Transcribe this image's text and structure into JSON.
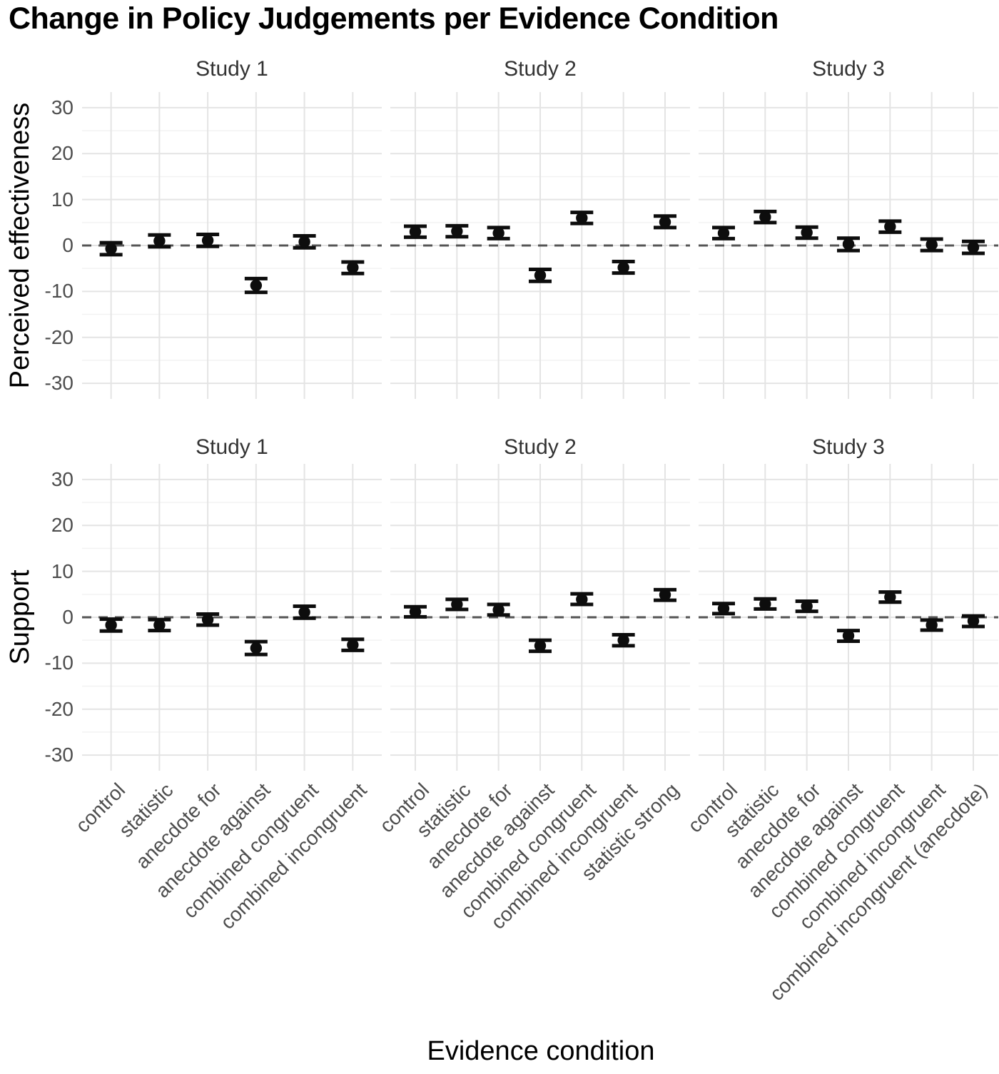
{
  "title": "Change in Policy Judgements per Evidence Condition",
  "x_axis_title": "Evidence condition",
  "y_tick_labels": [
    "30",
    "20",
    "10",
    "0",
    "-10",
    "-20",
    "-30"
  ],
  "colors": {
    "point": "#0d0d0d",
    "error_bar": "#0d0d0d",
    "zero_line": "#555555",
    "grid_major": "#e4e4e4",
    "grid_minor": "#f2f2f2",
    "axis_text": "#4d4d4d",
    "strip_text": "#333333",
    "title_text": "#000000",
    "background": "#ffffff"
  },
  "chart_data": {
    "type": "scatter",
    "subtype": "pointrange-with-error-bars",
    "grid": true,
    "zero_reference_line": true,
    "ylim": [
      -33.4,
      33.4
    ],
    "y_major_ticks": [
      30,
      20,
      10,
      0,
      -10,
      -20,
      -30
    ],
    "y_minor_ticks": [
      25,
      15,
      5,
      -5,
      -15,
      -25
    ],
    "rows": [
      {
        "ylabel": "Perceived effectiveness",
        "facets": [
          {
            "strip": "Study 1",
            "categories": [
              "control",
              "statistic",
              "anecdote for",
              "anecdote against",
              "combined congruent",
              "combined incongruent"
            ],
            "points": [
              {
                "est": -0.7,
                "lo": -2.0,
                "hi": 0.6
              },
              {
                "est": 1.0,
                "lo": -0.3,
                "hi": 2.3
              },
              {
                "est": 1.1,
                "lo": -0.2,
                "hi": 2.4
              },
              {
                "est": -8.7,
                "lo": -10.2,
                "hi": -7.2
              },
              {
                "est": 0.8,
                "lo": -0.5,
                "hi": 2.1
              },
              {
                "est": -4.8,
                "lo": -6.1,
                "hi": -3.6
              }
            ]
          },
          {
            "strip": "Study 2",
            "categories": [
              "control",
              "statistic",
              "anecdote for",
              "anecdote against",
              "combined congruent",
              "combined incongruent",
              "statistic strong"
            ],
            "points": [
              {
                "est": 3.0,
                "lo": 1.8,
                "hi": 4.2
              },
              {
                "est": 3.1,
                "lo": 1.9,
                "hi": 4.3
              },
              {
                "est": 2.7,
                "lo": 1.5,
                "hi": 3.9
              },
              {
                "est": -6.5,
                "lo": -7.8,
                "hi": -5.2
              },
              {
                "est": 6.0,
                "lo": 4.8,
                "hi": 7.2
              },
              {
                "est": -4.8,
                "lo": -6.0,
                "hi": -3.5
              },
              {
                "est": 5.1,
                "lo": 3.9,
                "hi": 6.4
              }
            ]
          },
          {
            "strip": "Study 3",
            "categories": [
              "control",
              "statistic",
              "anecdote for",
              "anecdote against",
              "combined congruent",
              "combined incongruent",
              "combined incongruent (anecdote)"
            ],
            "points": [
              {
                "est": 2.7,
                "lo": 1.5,
                "hi": 3.9
              },
              {
                "est": 6.2,
                "lo": 5.0,
                "hi": 7.4
              },
              {
                "est": 2.8,
                "lo": 1.6,
                "hi": 4.0
              },
              {
                "est": 0.3,
                "lo": -1.1,
                "hi": 1.6
              },
              {
                "est": 4.1,
                "lo": 2.9,
                "hi": 5.3
              },
              {
                "est": 0.2,
                "lo": -1.1,
                "hi": 1.4
              },
              {
                "est": -0.4,
                "lo": -1.7,
                "hi": 0.9
              }
            ]
          }
        ]
      },
      {
        "ylabel": "Support",
        "facets": [
          {
            "strip": "Study 1",
            "categories": [
              "control",
              "statistic",
              "anecdote for",
              "anecdote against",
              "combined congruent",
              "combined incongruent"
            ],
            "points": [
              {
                "est": -1.7,
                "lo": -3.0,
                "hi": -0.4
              },
              {
                "est": -1.7,
                "lo": -2.9,
                "hi": -0.5
              },
              {
                "est": -0.5,
                "lo": -1.7,
                "hi": 0.7
              },
              {
                "est": -6.7,
                "lo": -8.1,
                "hi": -5.3
              },
              {
                "est": 1.1,
                "lo": -0.2,
                "hi": 2.4
              },
              {
                "est": -6.0,
                "lo": -7.2,
                "hi": -4.8
              }
            ]
          },
          {
            "strip": "Study 2",
            "categories": [
              "control",
              "statistic",
              "anecdote for",
              "anecdote against",
              "combined congruent",
              "combined incongruent",
              "statistic strong"
            ],
            "points": [
              {
                "est": 1.2,
                "lo": 0.1,
                "hi": 2.3
              },
              {
                "est": 2.8,
                "lo": 1.7,
                "hi": 3.9
              },
              {
                "est": 1.6,
                "lo": 0.5,
                "hi": 2.8
              },
              {
                "est": -6.2,
                "lo": -7.4,
                "hi": -5.0
              },
              {
                "est": 3.9,
                "lo": 2.8,
                "hi": 5.1
              },
              {
                "est": -5.0,
                "lo": -6.2,
                "hi": -3.8
              },
              {
                "est": 4.9,
                "lo": 3.7,
                "hi": 6.0
              }
            ]
          },
          {
            "strip": "Study 3",
            "categories": [
              "control",
              "statistic",
              "anecdote for",
              "anecdote against",
              "combined congruent",
              "combined incongruent",
              "combined incongruent (anecdote)"
            ],
            "points": [
              {
                "est": 1.9,
                "lo": 0.8,
                "hi": 3.0
              },
              {
                "est": 2.9,
                "lo": 1.8,
                "hi": 4.0
              },
              {
                "est": 2.4,
                "lo": 1.3,
                "hi": 3.5
              },
              {
                "est": -4.0,
                "lo": -5.2,
                "hi": -2.9
              },
              {
                "est": 4.4,
                "lo": 3.3,
                "hi": 5.5
              },
              {
                "est": -1.7,
                "lo": -2.8,
                "hi": -0.6
              },
              {
                "est": -0.8,
                "lo": -2.0,
                "hi": 0.3
              }
            ]
          }
        ]
      }
    ]
  }
}
